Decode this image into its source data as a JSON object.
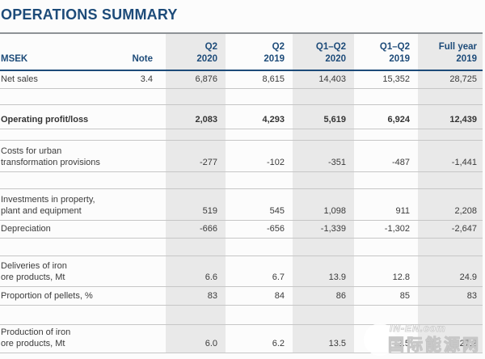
{
  "page": {
    "title": "OPERATIONS SUMMARY"
  },
  "table": {
    "unit_label": "MSEK",
    "note_label": "Note",
    "columns": [
      {
        "line1": "Q2",
        "line2": "2020"
      },
      {
        "line1": "Q2",
        "line2": "2019"
      },
      {
        "line1": "Q1–Q2",
        "line2": "2020"
      },
      {
        "line1": "Q1–Q2",
        "line2": "2019"
      },
      {
        "line1": "Full year",
        "line2": "2019"
      }
    ],
    "rows": [
      {
        "label1": "Net sales",
        "label2": "",
        "note": "3.4",
        "values": [
          "6,876",
          "8,615",
          "14,403",
          "15,352",
          "28,725"
        ]
      },
      {
        "label1": "Operating profit/loss",
        "label2": "",
        "note": "",
        "values": [
          "2,083",
          "4,293",
          "5,619",
          "6,924",
          "12,439"
        ]
      },
      {
        "label1": "Costs for urban",
        "label2": "transformation provisions",
        "note": "",
        "values": [
          "-277",
          "-102",
          "-351",
          "-487",
          "-1,441"
        ]
      },
      {
        "label1": "Investments in property,",
        "label2": "plant and equipment",
        "note": "",
        "values": [
          "519",
          "545",
          "1,098",
          "911",
          "2,208"
        ]
      },
      {
        "label1": "Depreciation",
        "label2": "",
        "note": "",
        "values": [
          "-666",
          "-656",
          "-1,339",
          "-1,302",
          "-2,647"
        ]
      },
      {
        "label1": "Deliveries of iron",
        "label2": "ore products, Mt",
        "note": "",
        "values": [
          "6.6",
          "6.7",
          "13.9",
          "12.8",
          "24.9"
        ]
      },
      {
        "label1": "Proportion of pellets, %",
        "label2": "",
        "note": "",
        "values": [
          "83",
          "84",
          "86",
          "85",
          "83"
        ]
      },
      {
        "label1": "Production of iron",
        "label2": "ore products, Mt",
        "note": "",
        "values": [
          "6.0",
          "6.2",
          "13.5",
          "12.5",
          "27.2"
        ]
      }
    ]
  },
  "watermark": {
    "site": "IN-EN.com",
    "name": "国际能源网"
  },
  "colors": {
    "title_navy": "#1d4b79",
    "band_gray": "#e9e9e9",
    "row_border": "#c6c6c6",
    "title_rule": "#8e9296",
    "body_text": "#3b3b3b"
  }
}
